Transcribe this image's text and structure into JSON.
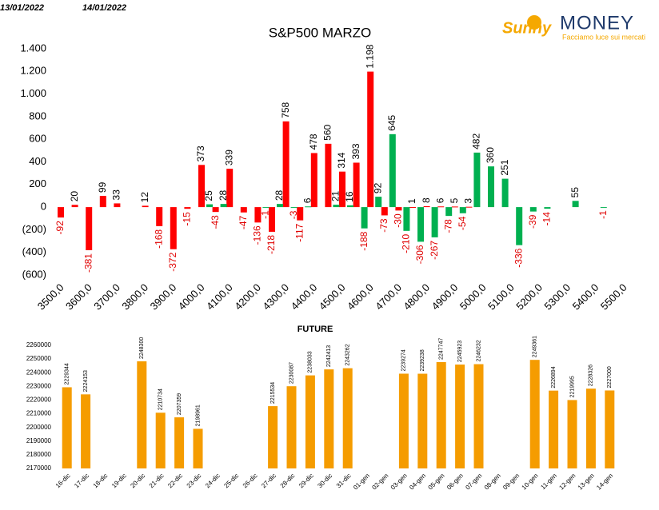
{
  "logo": {
    "brand": "Sunny",
    "name": "MONEY",
    "tagline": "Facciamo luce sui mercati"
  },
  "chart_data": [
    {
      "type": "bar",
      "title": "S&P500 MARZO",
      "categories": [
        "3500,0",
        null,
        "3600,0",
        null,
        "3700,0",
        null,
        "3800,0",
        null,
        "3900,0",
        null,
        "4000,0",
        null,
        "4100,0",
        null,
        "4200,0",
        null,
        "4300,0",
        null,
        "4400,0",
        null,
        "4500,0",
        null,
        "4600,0",
        null,
        "4700,0",
        null,
        "4800,0",
        null,
        "4900,0",
        null,
        "5000,0",
        null,
        "5100,0",
        null,
        "5200,0",
        null,
        "5300,0",
        null,
        "5400,0",
        null,
        "5500,0"
      ],
      "series": [
        {
          "name": "13/01/2022",
          "color": "#ff0000",
          "values": [
            -92,
            20,
            -381,
            99,
            33,
            null,
            12,
            -168,
            -372,
            -15,
            373,
            -43,
            339,
            -47,
            -136,
            -218,
            758,
            -117,
            478,
            560,
            314,
            393,
            1198,
            -73,
            -30,
            1,
            8,
            6,
            5,
            3,
            null,
            null,
            null,
            null,
            null,
            null,
            null,
            null,
            null,
            null,
            null
          ],
          "value_labels": [
            "-92",
            "20",
            "-381",
            "99",
            "33",
            null,
            "12",
            "-168",
            "-372",
            "-15",
            "373",
            "-43",
            "339",
            "-47",
            "-136",
            "-218",
            "758",
            "-117",
            "478",
            "560",
            "314",
            "393",
            "1.198",
            "-73",
            "-30",
            "1",
            "8",
            "6",
            "5",
            "3",
            null,
            null,
            null,
            null,
            null,
            null,
            null,
            null,
            null,
            null,
            null
          ]
        },
        {
          "name": "14/01/2022",
          "color": "#00b050",
          "values": [
            null,
            null,
            null,
            null,
            null,
            null,
            null,
            null,
            null,
            null,
            25,
            28,
            null,
            null,
            -1,
            28,
            -3,
            6,
            null,
            21,
            16,
            -188,
            92,
            645,
            -210,
            -306,
            -267,
            -78,
            -54,
            482,
            360,
            251,
            -336,
            -39,
            -14,
            null,
            55,
            null,
            -1,
            null,
            null
          ],
          "value_labels": [
            null,
            null,
            null,
            null,
            null,
            null,
            null,
            null,
            null,
            null,
            "25",
            "28",
            null,
            null,
            "-1",
            "28",
            "-3",
            "6",
            null,
            "21",
            "16",
            "-188",
            "92",
            "645",
            "-210",
            "-306",
            "-267",
            "-78",
            "-54",
            "482",
            "360",
            "251",
            "-336",
            "-39",
            "-14",
            null,
            "55",
            null,
            "-1",
            null,
            null
          ]
        }
      ],
      "ylim": [
        -600,
        1400
      ],
      "yticks": [
        {
          "value": -600,
          "label": "(600)"
        },
        {
          "value": -400,
          "label": "(400)"
        },
        {
          "value": -200,
          "label": "(200)"
        },
        0,
        200,
        400,
        600,
        800,
        {
          "value": 1000,
          "label": "1.000"
        },
        {
          "value": 1200,
          "label": "1.200"
        },
        {
          "value": 1400,
          "label": "1.400"
        }
      ]
    },
    {
      "type": "bar",
      "title": "FUTURE",
      "color": "#f59c00",
      "categories": [
        "16-dic",
        "17-dic",
        "18-dic",
        "19-dic",
        "20-dic",
        "21-dic",
        "22-dic",
        "23-dic",
        "24-dic",
        "25-dic",
        "26-dic",
        "27-dic",
        "28-dic",
        "29-dic",
        "30-dic",
        "31-dic",
        "01-gen",
        "02-gen",
        "03-gen",
        "04-gen",
        "05-gen",
        "06-gen",
        "07-gen",
        "08-gen",
        "09-gen",
        "10-gen",
        "11-gen",
        "12-gen",
        "13-gen",
        "14-gen"
      ],
      "values": [
        2229344,
        2224153,
        null,
        null,
        2248300,
        2210734,
        2207359,
        2198961,
        null,
        null,
        null,
        2215534,
        2230087,
        2238033,
        2242413,
        2243262,
        null,
        null,
        2239274,
        2239238,
        2247747,
        2245923,
        2246232,
        null,
        null,
        2249361,
        2226894,
        2219995,
        2228326,
        2227000
      ],
      "ylim": [
        2170000,
        2260000
      ],
      "yticks": [
        2170000,
        2180000,
        2190000,
        2200000,
        2210000,
        2220000,
        2230000,
        2240000,
        2250000,
        2260000
      ]
    }
  ]
}
